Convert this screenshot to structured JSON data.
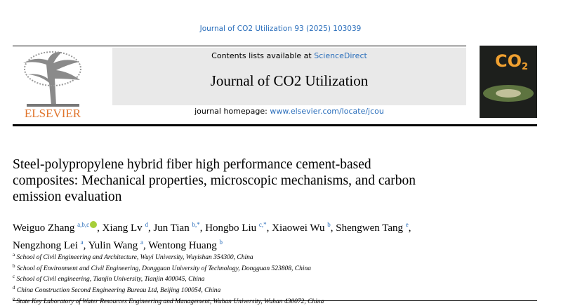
{
  "header": {
    "citation": "Journal of CO2 Utilization 93 (2025) 103039",
    "contents_prefix": "Contents lists available at",
    "contents_link": "ScienceDirect",
    "journal_title": "Journal of CO2 Utilization",
    "homepage_prefix": "journal homepage:",
    "homepage_link": "www.elsevier.com/locate/jcou",
    "publisher": "ELSEVIER",
    "cover": {
      "title": "CO",
      "subscript": "2"
    }
  },
  "article": {
    "title_lines": [
      "Steel-polypropylene hybrid fiber high performance cement-based",
      "composites: Mechanical properties, microscopic mechanisms, and carbon",
      "emission evaluation"
    ],
    "author_separator": ",",
    "author_lines": [
      [
        {
          "name": "Weiguo Zhang",
          "affil": "a,b,c",
          "orcid": true
        },
        {
          "name": "Xiang Lv",
          "affil": "d"
        },
        {
          "name": "Jun Tian",
          "affil": "b,*"
        },
        {
          "name": "Hongbo Liu",
          "affil": "c,*"
        },
        {
          "name": "Xiaowei Wu",
          "affil": "b"
        },
        {
          "name": "Shengwen Tang",
          "affil": "e"
        }
      ],
      [
        {
          "name": "Nengzhong Lei",
          "affil": "a"
        },
        {
          "name": "Yulin Wang",
          "affil": "a"
        },
        {
          "name": "Wentong Huang",
          "affil": "b"
        }
      ]
    ],
    "affiliations": [
      {
        "label": "a",
        "text": "School of Civil Engineering and Architecture, Wuyi University, Wuyishan 354300, China"
      },
      {
        "label": "b",
        "text": "School of Environment and Civil Engineering, Dongguan University of Technology, Dongguan 523808, China"
      },
      {
        "label": "c",
        "text": "School of Civil engineering, Tianjin University, Tianjin 400045, China"
      },
      {
        "label": "d",
        "text": "China Construction Second Engineering Bureau Ltd, Beijing 100054, China"
      },
      {
        "label": "e",
        "text": "State Key Laboratory of Water Resources Engineering and Management, Wuhan University, Wuhan 430072, China"
      }
    ]
  }
}
